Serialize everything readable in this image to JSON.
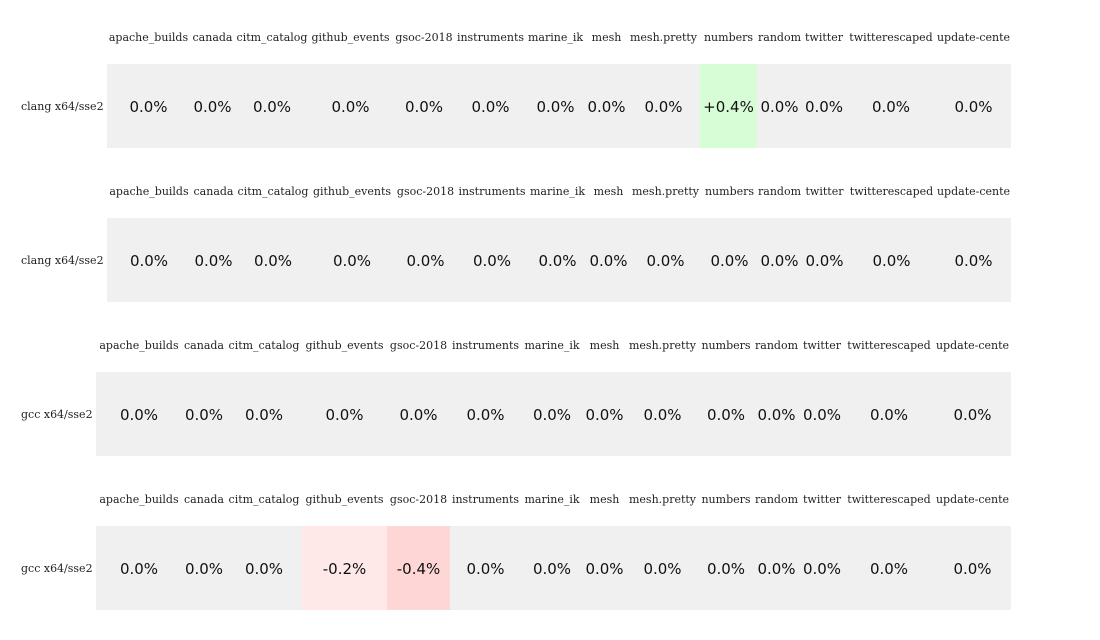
{
  "chart_data": {
    "type": "table",
    "columns": [
      "apache_builds",
      "canada",
      "citm_catalog",
      "github_events",
      "gsoc-2018",
      "instruments",
      "marine_ik",
      "mesh",
      "mesh.pretty",
      "numbers",
      "random",
      "twitter",
      "twitterescaped",
      "update-cente"
    ],
    "rows": [
      {
        "label": "clang x64/sse2",
        "values": [
          "0.0%",
          "0.0%",
          "0.0%",
          "0.0%",
          "0.0%",
          "0.0%",
          "0.0%",
          "0.0%",
          "0.0%",
          "+0.4%",
          "0.0%",
          "0.0%",
          "0.0%",
          "0.0%"
        ],
        "change": [
          0,
          0,
          0,
          0,
          0,
          0,
          0,
          0,
          0,
          0.4,
          0,
          0,
          0,
          0
        ]
      },
      {
        "label": "clang x64/sse2",
        "values": [
          "0.0%",
          "0.0%",
          "0.0%",
          "0.0%",
          "0.0%",
          "0.0%",
          "0.0%",
          "0.0%",
          "0.0%",
          "0.0%",
          "0.0%",
          "0.0%",
          "0.0%",
          "0.0%"
        ],
        "change": [
          0,
          0,
          0,
          0,
          0,
          0,
          0,
          0,
          0,
          0,
          0,
          0,
          0,
          0
        ]
      },
      {
        "label": "gcc x64/sse2",
        "values": [
          "0.0%",
          "0.0%",
          "0.0%",
          "0.0%",
          "0.0%",
          "0.0%",
          "0.0%",
          "0.0%",
          "0.0%",
          "0.0%",
          "0.0%",
          "0.0%",
          "0.0%",
          "0.0%"
        ],
        "change": [
          0,
          0,
          0,
          0,
          0,
          0,
          0,
          0,
          0,
          0,
          0,
          0,
          0,
          0
        ]
      },
      {
        "label": "gcc x64/sse2",
        "values": [
          "0.0%",
          "0.0%",
          "0.0%",
          "-0.2%",
          "-0.4%",
          "0.0%",
          "0.0%",
          "0.0%",
          "0.0%",
          "0.0%",
          "0.0%",
          "0.0%",
          "0.0%",
          "0.0%"
        ],
        "change": [
          0,
          0,
          0,
          -0.2,
          -0.4,
          0,
          0,
          0,
          0,
          0,
          0,
          0,
          0,
          0
        ]
      }
    ],
    "colors": {
      "neutral": "#f0f0f0",
      "positive": "#d7fdd7",
      "negative_small": "#ffe8e8",
      "negative": "#ffd6d6"
    }
  }
}
